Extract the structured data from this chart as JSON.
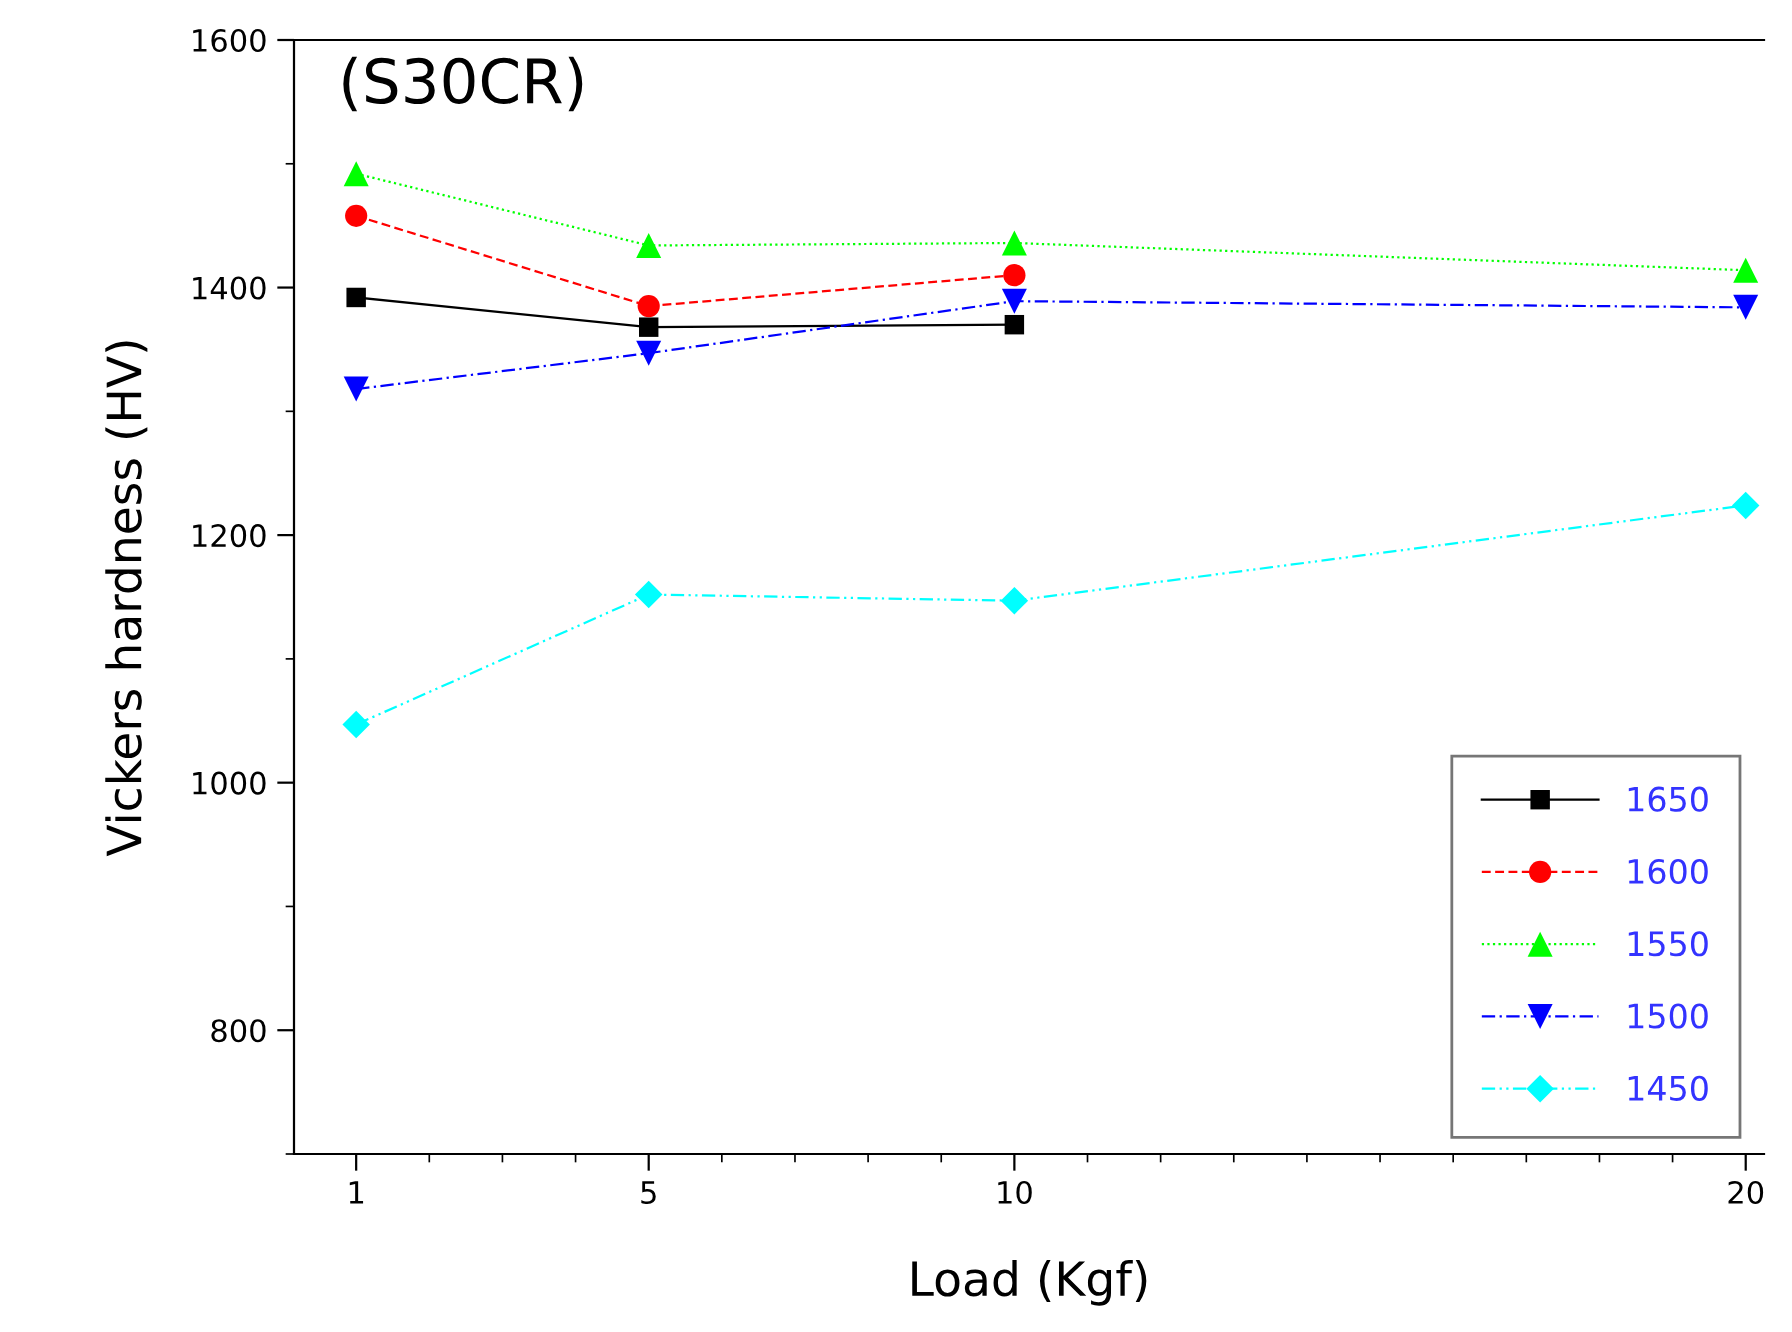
{
  "chart_data": {
    "type": "line",
    "xlabel": "Load (Kgf)",
    "ylabel": "Vickers hardness (HV)",
    "annotations": [
      "(S30CR)"
    ],
    "x": [
      1,
      5,
      10,
      20
    ],
    "series": [
      {
        "name": "1650",
        "color": "#000000",
        "marker": "square",
        "line_style": "solid",
        "values": [
          1392,
          1368,
          1370,
          null
        ]
      },
      {
        "name": "1600",
        "color": "#ff0000",
        "marker": "circle",
        "line_style": "dashed",
        "values": [
          1458,
          1385,
          1410,
          null
        ]
      },
      {
        "name": "1550",
        "color": "#00ff00",
        "marker": "triangle",
        "line_style": "dotted",
        "values": [
          1492,
          1434,
          1436,
          1414
        ]
      },
      {
        "name": "1500",
        "color": "#0000ff",
        "marker": "triangle_down",
        "line_style": "dashdot",
        "values": [
          1318,
          1347,
          1389,
          1384
        ]
      },
      {
        "name": "1450",
        "color": "#00ffff",
        "marker": "diamond",
        "line_style": "dashdotdot",
        "values": [
          1047,
          1152,
          1147,
          1224
        ]
      }
    ],
    "xlim": [
      0.15,
      20.25
    ],
    "xticks": [
      1,
      {
        "value": 2,
        "label": null
      },
      {
        "value": 3,
        "label": null
      },
      {
        "value": 4,
        "label": null
      },
      5,
      {
        "value": 6,
        "label": null
      },
      {
        "value": 7,
        "label": null
      },
      {
        "value": 8,
        "label": null
      },
      {
        "value": 9,
        "label": null
      },
      10,
      {
        "value": 11,
        "label": null
      },
      {
        "value": 12,
        "label": null
      },
      {
        "value": 13,
        "label": null
      },
      {
        "value": 14,
        "label": null
      },
      {
        "value": 15,
        "label": null
      },
      {
        "value": 16,
        "label": null
      },
      {
        "value": 17,
        "label": null
      },
      {
        "value": 18,
        "label": null
      },
      {
        "value": 19,
        "label": null
      },
      20
    ],
    "ylim": [
      700,
      1600
    ],
    "yticks": [
      {
        "value": 700,
        "label": null
      },
      800,
      {
        "value": 900,
        "label": null
      },
      1000,
      {
        "value": 1100,
        "label": null
      },
      1200,
      {
        "value": 1300,
        "label": null
      },
      1400,
      {
        "value": 1500,
        "label": null
      },
      1600
    ],
    "legend": "lower right",
    "grid": false
  }
}
